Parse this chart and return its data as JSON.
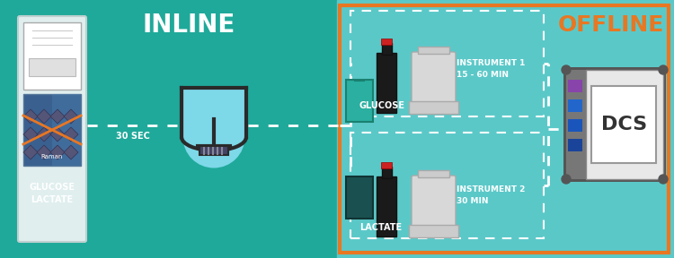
{
  "bg_left": "#1fa99a",
  "bg_right": "#5bc8c8",
  "border_color": "#e87722",
  "title_inline": "INLINE",
  "title_offline": "OFFLINE",
  "title_color_inline": "#ffffff",
  "title_color_offline": "#e87722",
  "label_glucose": "GLUCOSE\nLACTATE",
  "label_30sec": "30 SEC",
  "label_glucose2": "GLUCOSE",
  "label_lactate2": "LACTATE",
  "label_instrument1": "INSTRUMENT 1\n15 - 60 MIN",
  "label_instrument2": "INSTRUMENT 2\n30 MIN",
  "label_dcs": "DCS",
  "text_color": "#ffffff",
  "dashed_color": "#ffffff",
  "cab_fill": "#e0eeee",
  "cab_edge": "#c0d0d0",
  "beaker_fill": "#7dd8e8",
  "beaker_edge": "#2a2a2a",
  "tube_green": "#2aafa0",
  "tube_dark": "#1a5050",
  "bottle_dark": "#1a1a1a",
  "cap_red": "#cc2222",
  "instr_fill": "#d8d8d8",
  "instr_edge": "#aaaaaa",
  "dcs_body": "#888888",
  "dcs_screen": "#e8e8e8",
  "btn_colors": [
    "#8844aa",
    "#2266cc",
    "#1a55bb",
    "#1a4499"
  ],
  "figsize": [
    7.5,
    2.88
  ],
  "dpi": 100
}
